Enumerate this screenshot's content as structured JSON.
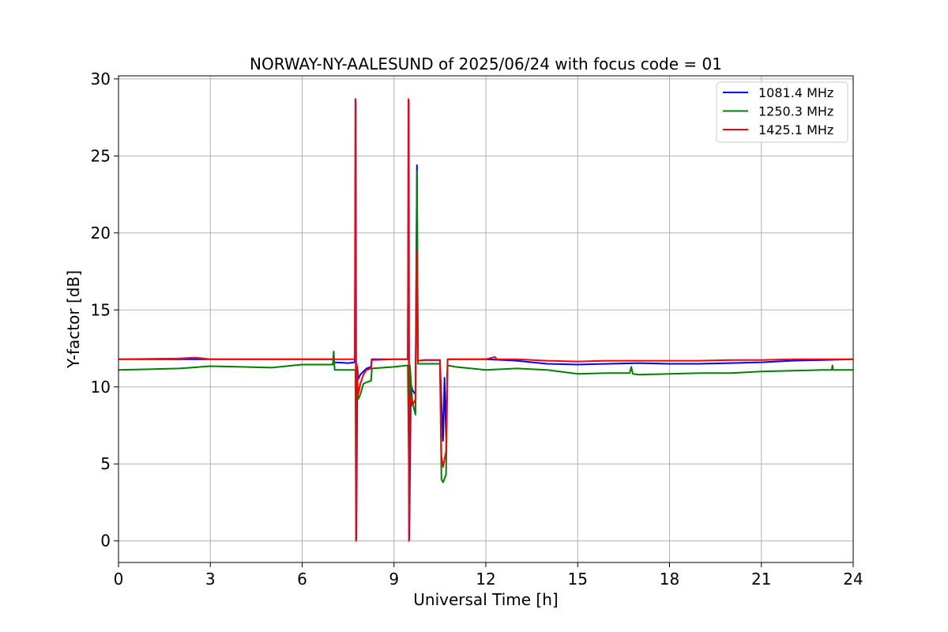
{
  "chart_data": {
    "type": "line",
    "title": "NORWAY-NY-AALESUND of 2025/06/24 with focus code = 01",
    "xlabel": "Universal Time [h]",
    "ylabel": "Y-factor [dB]",
    "xlim": [
      0,
      24
    ],
    "ylim": [
      -1.4,
      30.2
    ],
    "xticks": [
      0,
      3,
      6,
      9,
      12,
      15,
      18,
      21,
      24
    ],
    "yticks": [
      0,
      5,
      10,
      15,
      20,
      25,
      30
    ],
    "grid": true,
    "legend_position": "top-right",
    "series": [
      {
        "name": "1081.4 MHz",
        "color": "#0000ff",
        "points": [
          [
            0,
            11.8
          ],
          [
            3,
            11.8
          ],
          [
            6,
            11.8
          ],
          [
            7.0,
            11.8
          ],
          [
            7.05,
            11.6
          ],
          [
            7.5,
            11.55
          ],
          [
            7.72,
            11.6
          ],
          [
            7.75,
            28.6
          ],
          [
            7.77,
            0.1
          ],
          [
            7.8,
            11.3
          ],
          [
            7.83,
            10.5
          ],
          [
            7.9,
            10.8
          ],
          [
            8.0,
            11.0
          ],
          [
            8.1,
            11.2
          ],
          [
            8.25,
            11.3
          ],
          [
            8.27,
            11.8
          ],
          [
            9.0,
            11.8
          ],
          [
            9.45,
            11.8
          ],
          [
            9.48,
            28.6
          ],
          [
            9.5,
            0.1
          ],
          [
            9.55,
            10.2
          ],
          [
            9.6,
            9.8
          ],
          [
            9.7,
            9.5
          ],
          [
            9.75,
            24.4
          ],
          [
            9.78,
            11.7
          ],
          [
            10.0,
            11.75
          ],
          [
            10.5,
            11.75
          ],
          [
            10.55,
            9.0
          ],
          [
            10.6,
            6.5
          ],
          [
            10.65,
            10.6
          ],
          [
            10.7,
            6.8
          ],
          [
            10.75,
            11.8
          ],
          [
            12,
            11.8
          ],
          [
            13,
            11.7
          ],
          [
            14,
            11.5
          ],
          [
            15,
            11.45
          ],
          [
            16,
            11.5
          ],
          [
            17,
            11.55
          ],
          [
            18,
            11.5
          ],
          [
            19,
            11.5
          ],
          [
            20,
            11.55
          ],
          [
            21,
            11.6
          ],
          [
            22,
            11.7
          ],
          [
            23,
            11.75
          ],
          [
            24,
            11.8
          ]
        ]
      },
      {
        "name": "1250.3 MHz",
        "color": "#008000",
        "points": [
          [
            0,
            11.1
          ],
          [
            1,
            11.15
          ],
          [
            2,
            11.2
          ],
          [
            3,
            11.35
          ],
          [
            4,
            11.3
          ],
          [
            5,
            11.25
          ],
          [
            6,
            11.45
          ],
          [
            7.0,
            11.45
          ],
          [
            7.03,
            12.3
          ],
          [
            7.06,
            11.1
          ],
          [
            7.5,
            11.1
          ],
          [
            7.74,
            11.1
          ],
          [
            7.76,
            0.0
          ],
          [
            7.78,
            11.0
          ],
          [
            7.83,
            9.2
          ],
          [
            7.9,
            9.5
          ],
          [
            8.0,
            10.2
          ],
          [
            8.1,
            10.3
          ],
          [
            8.25,
            10.4
          ],
          [
            8.28,
            11.2
          ],
          [
            9.0,
            11.3
          ],
          [
            9.45,
            11.4
          ],
          [
            9.5,
            2.0
          ],
          [
            9.52,
            11.4
          ],
          [
            9.6,
            9.0
          ],
          [
            9.7,
            8.2
          ],
          [
            9.75,
            24.0
          ],
          [
            9.78,
            11.5
          ],
          [
            10.5,
            11.5
          ],
          [
            10.55,
            4.0
          ],
          [
            10.6,
            3.8
          ],
          [
            10.7,
            4.3
          ],
          [
            10.75,
            11.4
          ],
          [
            11,
            11.3
          ],
          [
            12,
            11.1
          ],
          [
            13,
            11.2
          ],
          [
            14,
            11.1
          ],
          [
            15,
            10.85
          ],
          [
            16,
            10.9
          ],
          [
            16.7,
            10.9
          ],
          [
            16.75,
            11.3
          ],
          [
            16.8,
            10.85
          ],
          [
            17,
            10.8
          ],
          [
            18,
            10.85
          ],
          [
            19,
            10.9
          ],
          [
            20,
            10.9
          ],
          [
            21,
            11.0
          ],
          [
            22,
            11.05
          ],
          [
            23,
            11.1
          ],
          [
            23.3,
            11.1
          ],
          [
            23.32,
            11.4
          ],
          [
            23.34,
            11.1
          ],
          [
            24,
            11.1
          ]
        ]
      },
      {
        "name": "1425.1 MHz",
        "color": "#ff0000",
        "points": [
          [
            0,
            11.8
          ],
          [
            2,
            11.85
          ],
          [
            2.5,
            11.9
          ],
          [
            3,
            11.8
          ],
          [
            6,
            11.8
          ],
          [
            7.0,
            11.8
          ],
          [
            7.72,
            11.8
          ],
          [
            7.74,
            28.7
          ],
          [
            7.76,
            0.0
          ],
          [
            7.78,
            11.5
          ],
          [
            7.83,
            9.5
          ],
          [
            7.9,
            10.2
          ],
          [
            8.0,
            10.8
          ],
          [
            8.1,
            11.1
          ],
          [
            8.25,
            11.2
          ],
          [
            8.27,
            11.75
          ],
          [
            9.0,
            11.8
          ],
          [
            9.45,
            11.8
          ],
          [
            9.47,
            28.7
          ],
          [
            9.49,
            0.0
          ],
          [
            9.52,
            9.5
          ],
          [
            9.6,
            8.8
          ],
          [
            9.7,
            9.2
          ],
          [
            9.75,
            18.8
          ],
          [
            9.78,
            11.7
          ],
          [
            10.0,
            11.75
          ],
          [
            10.5,
            11.75
          ],
          [
            10.55,
            5.5
          ],
          [
            10.6,
            4.8
          ],
          [
            10.7,
            5.8
          ],
          [
            10.75,
            11.8
          ],
          [
            12,
            11.8
          ],
          [
            12.3,
            11.95
          ],
          [
            12.35,
            11.8
          ],
          [
            13,
            11.8
          ],
          [
            14,
            11.7
          ],
          [
            15,
            11.65
          ],
          [
            16,
            11.7
          ],
          [
            17,
            11.7
          ],
          [
            18,
            11.7
          ],
          [
            19,
            11.7
          ],
          [
            20,
            11.75
          ],
          [
            21,
            11.75
          ],
          [
            22,
            11.8
          ],
          [
            23,
            11.8
          ],
          [
            24,
            11.8
          ]
        ]
      }
    ]
  }
}
